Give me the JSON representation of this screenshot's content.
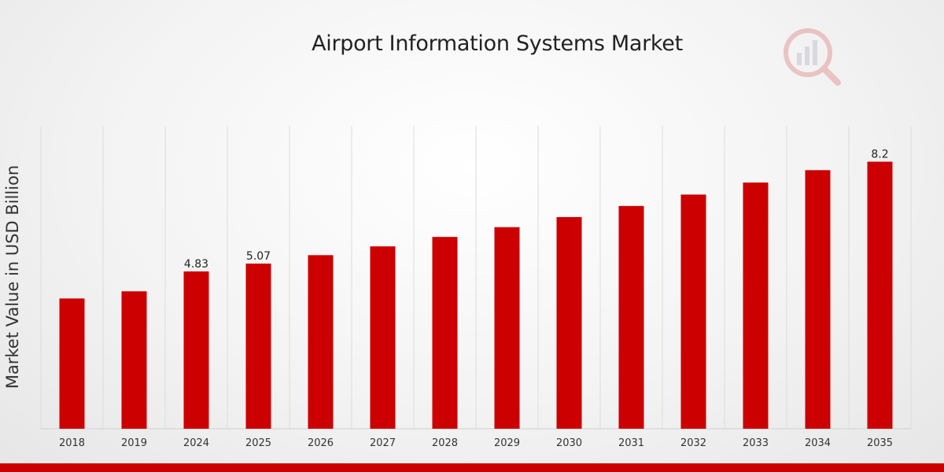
{
  "chart_data": {
    "type": "bar",
    "title": "Airport Information Systems Market",
    "xlabel": "",
    "ylabel": "Market Value in USD Billion",
    "categories": [
      "2018",
      "2019",
      "2024",
      "2025",
      "2026",
      "2027",
      "2028",
      "2029",
      "2030",
      "2031",
      "2032",
      "2033",
      "2034",
      "2035"
    ],
    "values": [
      4.0,
      4.22,
      4.83,
      5.07,
      5.33,
      5.6,
      5.89,
      6.19,
      6.5,
      6.84,
      7.19,
      7.56,
      7.94,
      8.2
    ],
    "data_labels": {
      "2": "4.83",
      "3": "5.07",
      "13": "8.2"
    },
    "ylim": [
      0,
      9.3
    ],
    "grid": {
      "vertical": true,
      "horizontal": false
    },
    "legend": "none",
    "colors": {
      "bar": "#cc0000",
      "grid": "#dcdcdc",
      "accent": "#cc0000"
    }
  },
  "logo": {
    "icon": "magnifier-chart-logo-icon"
  }
}
